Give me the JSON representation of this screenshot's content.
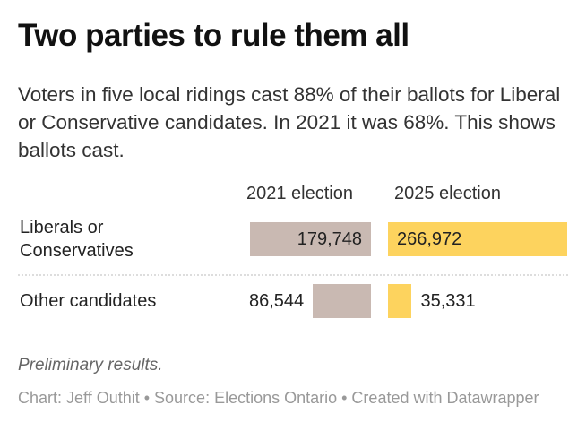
{
  "header": {
    "title": "Two parties to rule them all",
    "description": "Voters in five local ridings cast 88% of their ballots for Liberal or Conservative candidates. In 2021 it was 68%. This shows ballots cast."
  },
  "chart_data": {
    "type": "bar",
    "title": "Two parties to rule them all",
    "categories": [
      "Liberals or Conservatives",
      "Other candidates"
    ],
    "series": [
      {
        "name": "2021 election",
        "values": [
          179748,
          86544
        ],
        "color": "#c9b9b2",
        "labels": [
          "179,748",
          "86,544"
        ]
      },
      {
        "name": "2025 election",
        "values": [
          266972,
          35331
        ],
        "color": "#fdd35e",
        "labels": [
          "266,972",
          "35,331"
        ]
      }
    ],
    "xlim": [
      0,
      266972
    ],
    "grid": false
  },
  "footer": {
    "note": "Preliminary results.",
    "credit": "Chart: Jeff Outhit • Source: Elections Ontario • Created with Datawrapper"
  }
}
